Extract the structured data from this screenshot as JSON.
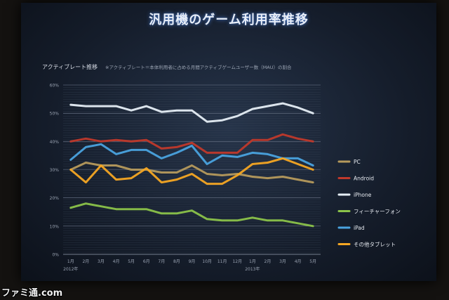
{
  "title": "汎用機のゲーム利用率推移",
  "subtitle": "アクティブレート推移",
  "note": "※アクティブレート＝本体利用者に占める月間アクティブゲームユーザー数（MAU）の割合",
  "watermark": "ファミ通.com",
  "chart_data": {
    "type": "line",
    "x": [
      "1月",
      "2月",
      "3月",
      "4月",
      "5月",
      "6月",
      "7月",
      "8月",
      "9月",
      "10月",
      "11月",
      "12月",
      "1月",
      "2月",
      "3月",
      "4月",
      "5月"
    ],
    "year_labels": [
      {
        "label": "2012年",
        "index": 0
      },
      {
        "label": "2013年",
        "index": 12
      }
    ],
    "y_ticks": [
      "0%",
      "10%",
      "20%",
      "30%",
      "40%",
      "50%",
      "60%"
    ],
    "ylim": [
      0,
      60
    ],
    "grid": true,
    "legend_position": "right",
    "series": [
      {
        "name": "PC",
        "color": "#b69a5c",
        "values": [
          30,
          32.5,
          31.5,
          31.5,
          30,
          30,
          29,
          29,
          31.5,
          28.5,
          28,
          28.5,
          27.5,
          27,
          27.5,
          26.5,
          25.5
        ]
      },
      {
        "name": "Android",
        "color": "#c0392b",
        "values": [
          40,
          41,
          40,
          40.5,
          40,
          40.5,
          37.5,
          38,
          39.5,
          36,
          36,
          36,
          40.5,
          40.5,
          42.5,
          41,
          40
        ]
      },
      {
        "name": "iPhone",
        "color": "#e6eef5",
        "values": [
          53,
          52.5,
          52.5,
          52.5,
          51,
          52.5,
          50.5,
          51,
          51,
          47,
          47.5,
          49,
          51.5,
          52.5,
          53.5,
          52,
          50
        ]
      },
      {
        "name": "フィーチャーフォン",
        "color": "#8bc34a",
        "values": [
          16.5,
          18,
          17,
          16,
          16,
          16,
          14.5,
          14.5,
          15.5,
          12.5,
          12,
          12,
          13,
          12,
          12,
          11,
          10
        ]
      },
      {
        "name": "iPad",
        "color": "#4aa3df",
        "values": [
          33.5,
          38,
          39,
          35.5,
          37,
          37,
          34,
          36,
          38.5,
          32,
          35,
          34.5,
          36,
          35.5,
          34,
          34,
          31.5
        ]
      },
      {
        "name": "その他タブレット",
        "color": "#f5a623",
        "values": [
          30,
          25.5,
          31.5,
          26.5,
          27,
          30.5,
          25.5,
          26.5,
          28.5,
          25,
          25,
          28,
          32,
          32.5,
          34,
          32,
          30
        ]
      }
    ]
  }
}
